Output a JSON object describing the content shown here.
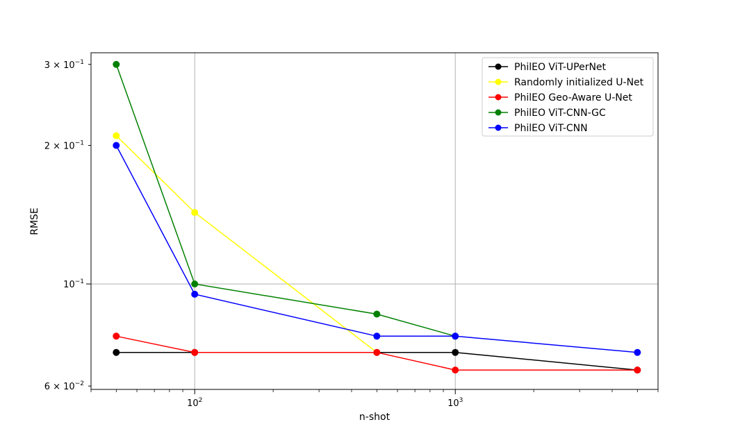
{
  "chart_data": {
    "type": "line",
    "title": "",
    "xlabel": "n-shot",
    "ylabel": "RMSE",
    "x_scale": "log",
    "y_scale": "log",
    "xlim": [
      40,
      6000
    ],
    "ylim": [
      0.059,
      0.318
    ],
    "grid": "major only",
    "legend_position": "top-right",
    "x_ticks": [
      {
        "value": 100,
        "base": "10",
        "exp": "2"
      },
      {
        "value": 1000,
        "base": "10",
        "exp": "3"
      }
    ],
    "y_ticks": [
      {
        "value": 0.3,
        "mantissa": "3 × 10",
        "exp": "−1"
      },
      {
        "value": 0.2,
        "mantissa": "2 × 10",
        "exp": "−1"
      },
      {
        "value": 0.1,
        "mantissa": "10",
        "exp": "−1"
      },
      {
        "value": 0.06,
        "mantissa": "6 × 10",
        "exp": "−2"
      }
    ],
    "y_grid": [
      0.1
    ],
    "x": [
      50,
      100,
      500,
      1000,
      5000
    ],
    "series": [
      {
        "name": "PhilEO ViT-UPerNet",
        "color": "#000000",
        "values": [
          0.071,
          0.071,
          0.071,
          0.071,
          0.065
        ]
      },
      {
        "name": "Randomly initialized U-Net",
        "color": "#ffff00",
        "values": [
          0.21,
          0.143,
          0.071,
          null,
          null
        ]
      },
      {
        "name": "PhilEO Geo-Aware U-Net",
        "color": "#ff0000",
        "values": [
          0.077,
          0.071,
          0.071,
          0.065,
          0.065
        ]
      },
      {
        "name": "PhilEO ViT-CNN-GC",
        "color": "#008000",
        "values": [
          0.3,
          0.1,
          0.086,
          0.077,
          null
        ]
      },
      {
        "name": "PhilEO ViT-CNN",
        "color": "#0000ff",
        "values": [
          0.2,
          0.095,
          0.077,
          0.077,
          0.071
        ]
      }
    ]
  }
}
